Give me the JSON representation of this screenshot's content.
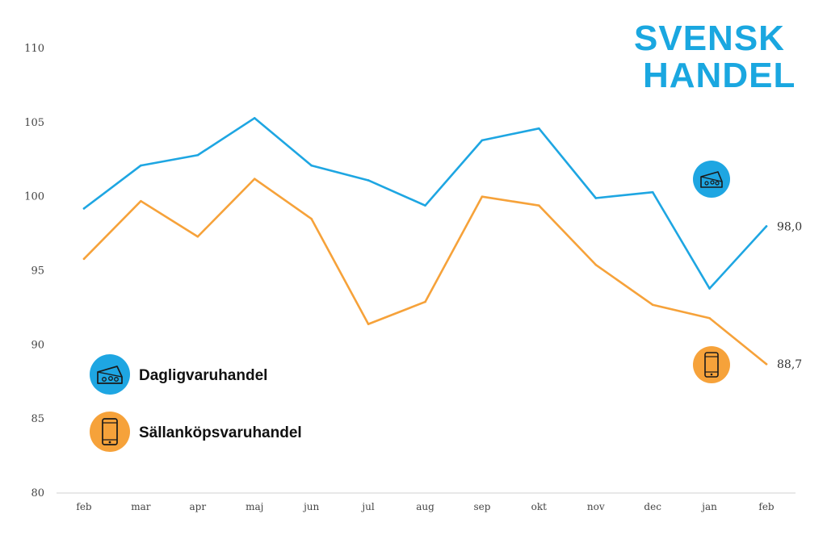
{
  "logo": {
    "line1": "SVENSK",
    "line2": "HANDEL"
  },
  "colors": {
    "daglig": "#1ea6e2",
    "sallan": "#f6a23a",
    "axis": "#d0d0d0"
  },
  "chart_data": {
    "type": "line",
    "categories": [
      "feb",
      "mar",
      "apr",
      "maj",
      "jun",
      "jul",
      "aug",
      "sep",
      "okt",
      "nov",
      "dec",
      "jan",
      "feb"
    ],
    "ylim": [
      80,
      110
    ],
    "yticks": [
      80,
      85,
      90,
      95,
      100,
      105,
      110
    ],
    "grid": false,
    "legend_placement": "bottom-left",
    "series": [
      {
        "name": "Dagligvaruhandel",
        "color": "#1ea6e2",
        "icon": "cash-register-icon",
        "values": [
          99.2,
          102.1,
          102.8,
          105.3,
          102.1,
          101.1,
          99.4,
          103.8,
          104.6,
          99.9,
          100.3,
          93.8,
          98.0
        ],
        "end_label": "98,0"
      },
      {
        "name": "Sällanköpsvaruhandel",
        "color": "#f6a23a",
        "icon": "smartphone-icon",
        "values": [
          95.8,
          99.7,
          97.3,
          101.2,
          98.5,
          91.4,
          92.9,
          100.0,
          99.4,
          95.4,
          92.7,
          91.8,
          88.7
        ],
        "end_label": "88,7"
      }
    ]
  }
}
